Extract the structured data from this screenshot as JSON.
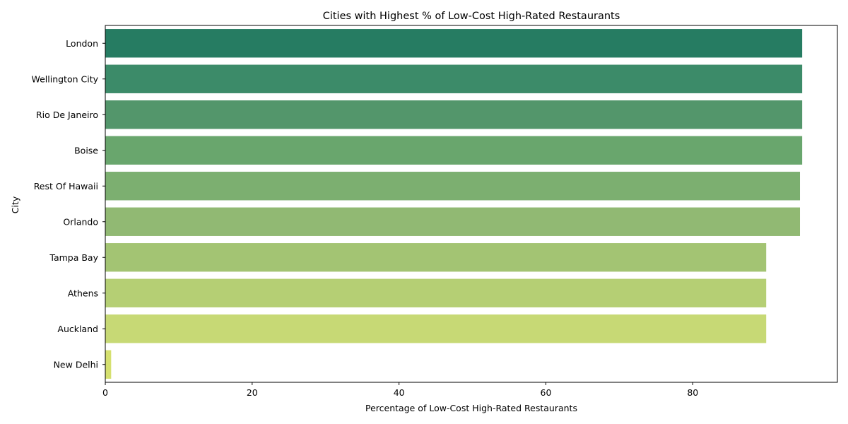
{
  "chart_data": {
    "type": "bar",
    "orientation": "horizontal",
    "title": "Cities with Highest % of Low-Cost High-Rated Restaurants",
    "xlabel": "Percentage of Low-Cost High-Rated Restaurants",
    "ylabel": "City",
    "xlim": [
      0,
      99.7
    ],
    "xticks": [
      0,
      20,
      40,
      60,
      80
    ],
    "grid": false,
    "categories": [
      "London",
      "Wellington City",
      "Rio De Janeiro",
      "Boise",
      "Rest Of Hawaii",
      "Orlando",
      "Tampa Bay",
      "Athens",
      "Auckland",
      "New Delhi"
    ],
    "values": [
      94.9,
      94.9,
      94.9,
      94.9,
      94.6,
      94.6,
      90.0,
      90.0,
      90.0,
      0.8
    ],
    "colors": [
      "#267c62",
      "#3c8b69",
      "#53966b",
      "#69a66d",
      "#7caf70",
      "#91b973",
      "#a3c473",
      "#b5cf74",
      "#c7d975",
      "#d5e06f"
    ]
  }
}
